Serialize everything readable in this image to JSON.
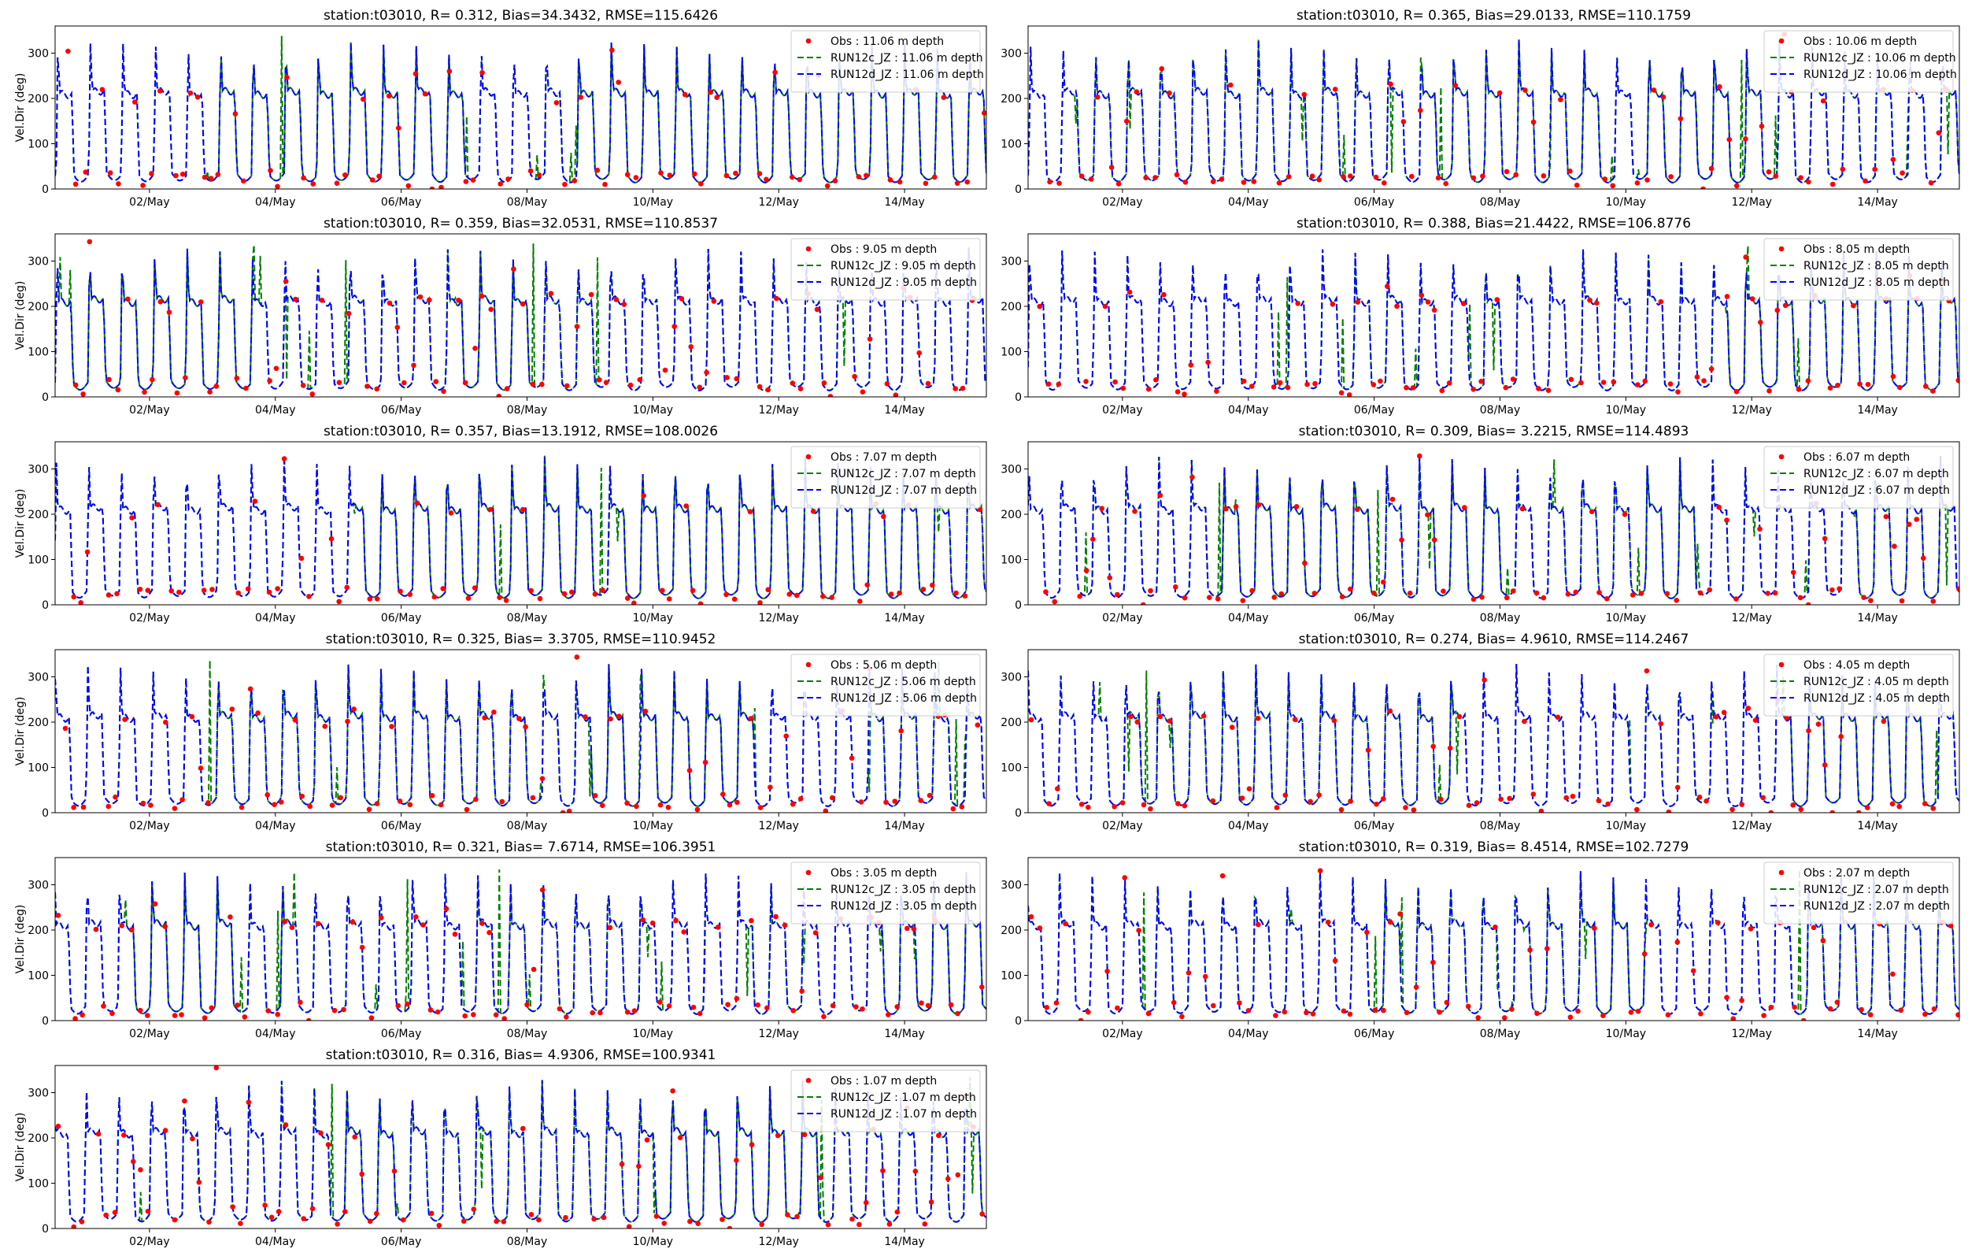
{
  "figure": {
    "colors": {
      "obs": "#ff0000",
      "run12c": "#008000",
      "run12d": "#0000ff"
    }
  },
  "chart_data": [
    {
      "type": "line",
      "title": "station:t03010, R= 0.312, Bias=34.3432, RMSE=115.6426",
      "ylabel": "Vel.Dir (deg)",
      "xlim": [
        0.5,
        15.3
      ],
      "ylim": [
        0,
        360
      ],
      "xticks": [
        2,
        4,
        6,
        8,
        10,
        12,
        14
      ],
      "xtick_labels": [
        "02/May",
        "04/May",
        "06/May",
        "08/May",
        "10/May",
        "12/May",
        "14/May"
      ],
      "yticks": [
        0,
        100,
        200,
        300
      ],
      "legend_position": "top-right",
      "depth": "11.06",
      "series": [
        {
          "name": "Obs : 11.06 m depth",
          "style": "points"
        },
        {
          "name": "RUN12c_JZ : 11.06 m depth",
          "style": "dashed"
        },
        {
          "name": "RUN12d_JZ : 11.06 m depth",
          "style": "dashed"
        }
      ]
    },
    {
      "type": "line",
      "title": "station:t03010, R= 0.365, Bias=29.0133, RMSE=110.1759",
      "ylabel": "",
      "xlim": [
        0.5,
        15.3
      ],
      "ylim": [
        0,
        360
      ],
      "xticks": [
        2,
        4,
        6,
        8,
        10,
        12,
        14
      ],
      "xtick_labels": [
        "02/May",
        "04/May",
        "06/May",
        "08/May",
        "10/May",
        "12/May",
        "14/May"
      ],
      "yticks": [
        0,
        100,
        200,
        300
      ],
      "legend_position": "top-right",
      "depth": "10.06",
      "series": [
        {
          "name": "Obs : 10.06 m depth",
          "style": "points"
        },
        {
          "name": "RUN12c_JZ : 10.06 m depth",
          "style": "dashed"
        },
        {
          "name": "RUN12d_JZ : 10.06 m depth",
          "style": "dashed"
        }
      ]
    },
    {
      "type": "line",
      "title": "station:t03010, R= 0.359, Bias=32.0531, RMSE=110.8537",
      "ylabel": "Vel.Dir (deg)",
      "xlim": [
        0.5,
        15.3
      ],
      "ylim": [
        0,
        360
      ],
      "xticks": [
        2,
        4,
        6,
        8,
        10,
        12,
        14
      ],
      "xtick_labels": [
        "02/May",
        "04/May",
        "06/May",
        "08/May",
        "10/May",
        "12/May",
        "14/May"
      ],
      "yticks": [
        0,
        100,
        200,
        300
      ],
      "legend_position": "top-right",
      "depth": "9.05",
      "series": [
        {
          "name": "Obs : 9.05 m depth",
          "style": "points"
        },
        {
          "name": "RUN12c_JZ : 9.05 m depth",
          "style": "dashed"
        },
        {
          "name": "RUN12d_JZ : 9.05 m depth",
          "style": "dashed"
        }
      ]
    },
    {
      "type": "line",
      "title": "station:t03010, R= 0.388, Bias=21.4422, RMSE=106.8776",
      "ylabel": "",
      "xlim": [
        0.5,
        15.3
      ],
      "ylim": [
        0,
        360
      ],
      "xticks": [
        2,
        4,
        6,
        8,
        10,
        12,
        14
      ],
      "xtick_labels": [
        "02/May",
        "04/May",
        "06/May",
        "08/May",
        "10/May",
        "12/May",
        "14/May"
      ],
      "yticks": [
        0,
        100,
        200,
        300
      ],
      "legend_position": "top-right",
      "depth": "8.05",
      "series": [
        {
          "name": "Obs : 8.05 m depth",
          "style": "points"
        },
        {
          "name": "RUN12c_JZ : 8.05 m depth",
          "style": "dashed"
        },
        {
          "name": "RUN12d_JZ : 8.05 m depth",
          "style": "dashed"
        }
      ]
    },
    {
      "type": "line",
      "title": "station:t03010, R= 0.357, Bias=13.1912, RMSE=108.0026",
      "ylabel": "Vel.Dir (deg)",
      "xlim": [
        0.5,
        15.3
      ],
      "ylim": [
        0,
        360
      ],
      "xticks": [
        2,
        4,
        6,
        8,
        10,
        12,
        14
      ],
      "xtick_labels": [
        "02/May",
        "04/May",
        "06/May",
        "08/May",
        "10/May",
        "12/May",
        "14/May"
      ],
      "yticks": [
        0,
        100,
        200,
        300
      ],
      "legend_position": "top-right",
      "depth": "7.07",
      "series": [
        {
          "name": "Obs : 7.07 m depth",
          "style": "points"
        },
        {
          "name": "RUN12c_JZ : 7.07 m depth",
          "style": "dashed"
        },
        {
          "name": "RUN12d_JZ : 7.07 m depth",
          "style": "dashed"
        }
      ]
    },
    {
      "type": "line",
      "title": "station:t03010, R= 0.309, Bias= 3.2215, RMSE=114.4893",
      "ylabel": "",
      "xlim": [
        0.5,
        15.3
      ],
      "ylim": [
        0,
        360
      ],
      "xticks": [
        2,
        4,
        6,
        8,
        10,
        12,
        14
      ],
      "xtick_labels": [
        "02/May",
        "04/May",
        "06/May",
        "08/May",
        "10/May",
        "12/May",
        "14/May"
      ],
      "yticks": [
        0,
        100,
        200,
        300
      ],
      "legend_position": "top-right",
      "depth": "6.07",
      "series": [
        {
          "name": "Obs : 6.07 m depth",
          "style": "points"
        },
        {
          "name": "RUN12c_JZ : 6.07 m depth",
          "style": "dashed"
        },
        {
          "name": "RUN12d_JZ : 6.07 m depth",
          "style": "dashed"
        }
      ]
    },
    {
      "type": "line",
      "title": "station:t03010, R= 0.325, Bias= 3.3705, RMSE=110.9452",
      "ylabel": "Vel.Dir (deg)",
      "xlim": [
        0.5,
        15.3
      ],
      "ylim": [
        0,
        360
      ],
      "xticks": [
        2,
        4,
        6,
        8,
        10,
        12,
        14
      ],
      "xtick_labels": [
        "02/May",
        "04/May",
        "06/May",
        "08/May",
        "10/May",
        "12/May",
        "14/May"
      ],
      "yticks": [
        0,
        100,
        200,
        300
      ],
      "legend_position": "top-right",
      "depth": "5.06",
      "series": [
        {
          "name": "Obs : 5.06 m depth",
          "style": "points"
        },
        {
          "name": "RUN12c_JZ : 5.06 m depth",
          "style": "dashed"
        },
        {
          "name": "RUN12d_JZ : 5.06 m depth",
          "style": "dashed"
        }
      ]
    },
    {
      "type": "line",
      "title": "station:t03010, R= 0.274, Bias= 4.9610, RMSE=114.2467",
      "ylabel": "",
      "xlim": [
        0.5,
        15.3
      ],
      "ylim": [
        0,
        360
      ],
      "xticks": [
        2,
        4,
        6,
        8,
        10,
        12,
        14
      ],
      "xtick_labels": [
        "02/May",
        "04/May",
        "06/May",
        "08/May",
        "10/May",
        "12/May",
        "14/May"
      ],
      "yticks": [
        0,
        100,
        200,
        300
      ],
      "legend_position": "top-right",
      "depth": "4.05",
      "series": [
        {
          "name": "Obs : 4.05 m depth",
          "style": "points"
        },
        {
          "name": "RUN12c_JZ : 4.05 m depth",
          "style": "dashed"
        },
        {
          "name": "RUN12d_JZ : 4.05 m depth",
          "style": "dashed"
        }
      ]
    },
    {
      "type": "line",
      "title": "station:t03010, R= 0.321, Bias= 7.6714, RMSE=106.3951",
      "ylabel": "Vel.Dir (deg)",
      "xlim": [
        0.5,
        15.3
      ],
      "ylim": [
        0,
        360
      ],
      "xticks": [
        2,
        4,
        6,
        8,
        10,
        12,
        14
      ],
      "xtick_labels": [
        "02/May",
        "04/May",
        "06/May",
        "08/May",
        "10/May",
        "12/May",
        "14/May"
      ],
      "yticks": [
        0,
        100,
        200,
        300
      ],
      "legend_position": "top-right",
      "depth": "3.05",
      "series": [
        {
          "name": "Obs : 3.05 m depth",
          "style": "points"
        },
        {
          "name": "RUN12c_JZ : 3.05 m depth",
          "style": "dashed"
        },
        {
          "name": "RUN12d_JZ : 3.05 m depth",
          "style": "dashed"
        }
      ]
    },
    {
      "type": "line",
      "title": "station:t03010, R= 0.319, Bias= 8.4514, RMSE=102.7279",
      "ylabel": "",
      "xlim": [
        0.5,
        15.3
      ],
      "ylim": [
        0,
        360
      ],
      "xticks": [
        2,
        4,
        6,
        8,
        10,
        12,
        14
      ],
      "xtick_labels": [
        "02/May",
        "04/May",
        "06/May",
        "08/May",
        "10/May",
        "12/May",
        "14/May"
      ],
      "yticks": [
        0,
        100,
        200,
        300
      ],
      "legend_position": "top-right",
      "depth": "2.07",
      "series": [
        {
          "name": "Obs : 2.07 m depth",
          "style": "points"
        },
        {
          "name": "RUN12c_JZ : 2.07 m depth",
          "style": "dashed"
        },
        {
          "name": "RUN12d_JZ : 2.07 m depth",
          "style": "dashed"
        }
      ]
    },
    {
      "type": "line",
      "title": "station:t03010, R= 0.316, Bias= 4.9306, RMSE=100.9341",
      "ylabel": "Vel.Dir (deg)",
      "xlim": [
        0.5,
        15.3
      ],
      "ylim": [
        0,
        360
      ],
      "xticks": [
        2,
        4,
        6,
        8,
        10,
        12,
        14
      ],
      "xtick_labels": [
        "02/May",
        "04/May",
        "06/May",
        "08/May",
        "10/May",
        "12/May",
        "14/May"
      ],
      "yticks": [
        0,
        100,
        200,
        300
      ],
      "legend_position": "top-right",
      "depth": "1.07",
      "series": [
        {
          "name": "Obs : 1.07 m depth",
          "style": "points"
        },
        {
          "name": "RUN12c_JZ : 1.07 m depth",
          "style": "dashed"
        },
        {
          "name": "RUN12d_JZ : 1.07 m depth",
          "style": "dashed"
        }
      ]
    }
  ]
}
